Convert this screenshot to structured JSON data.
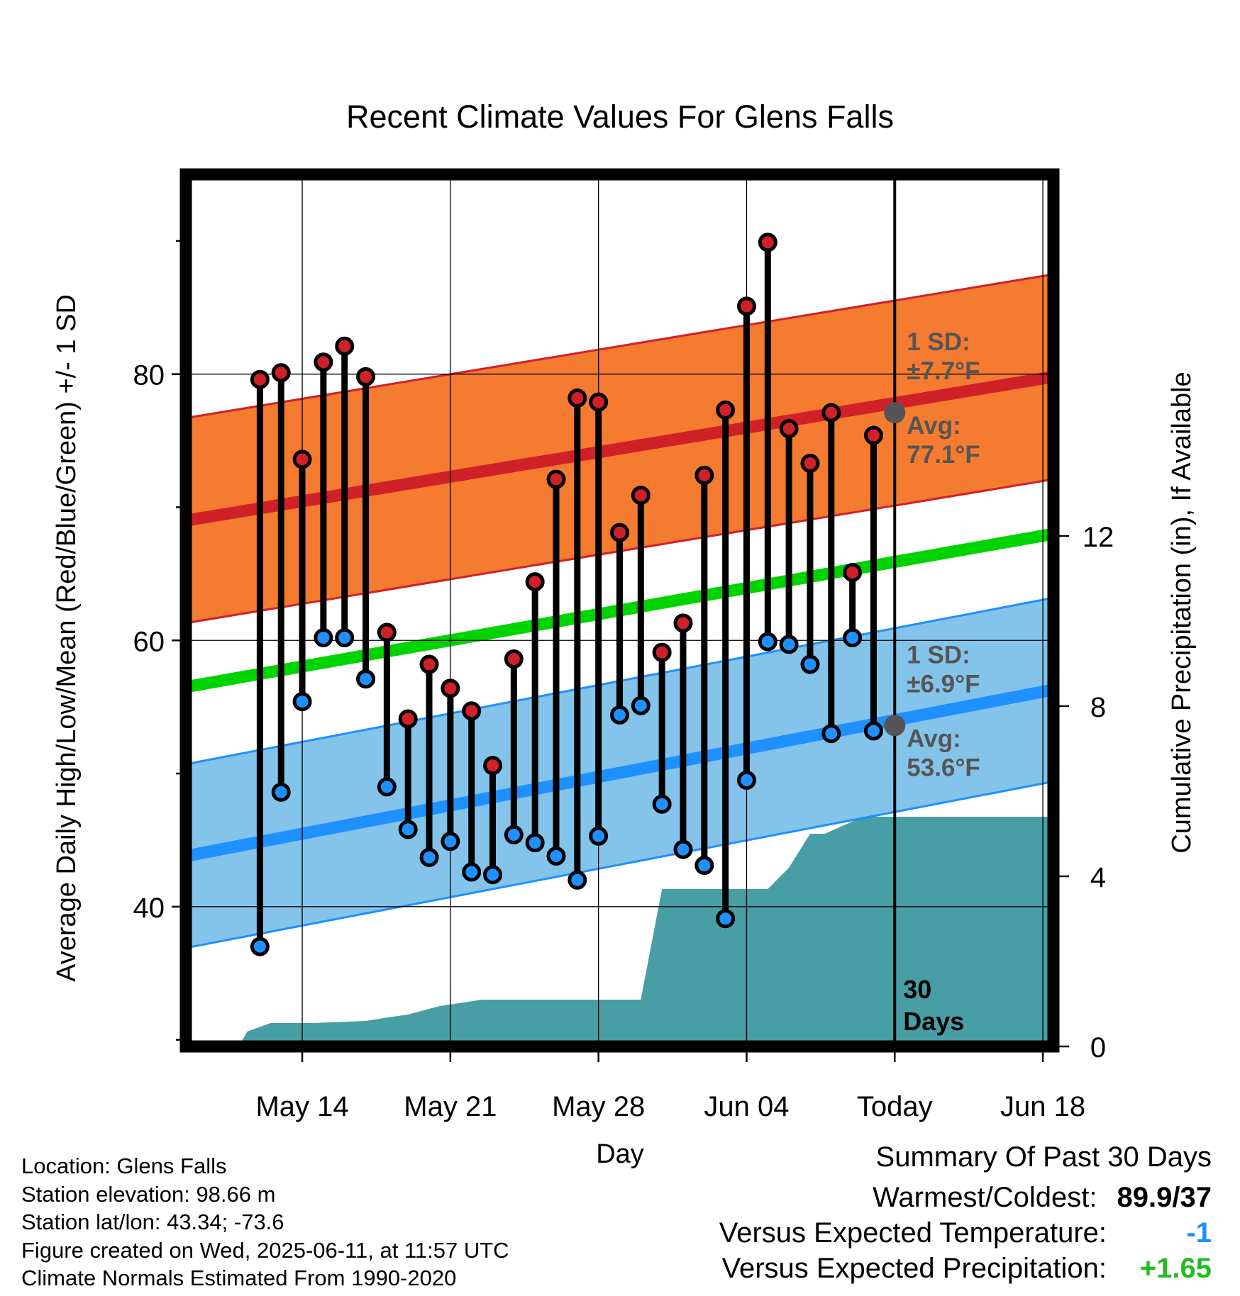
{
  "chart_data": {
    "type": "line",
    "title": "Recent Climate Values For Glens Falls",
    "xlabel": "Day",
    "ylabel": "Average Daily High/Low/Mean (Red/Blue/Green) +/- 1 SD",
    "y2label": "Cumulative Precipitation (in), If Available",
    "ylim": [
      29.5,
      95
    ],
    "y2lim": [
      0,
      20.5
    ],
    "yticks": [
      40,
      60,
      80
    ],
    "yminor": [
      30,
      50,
      70,
      90
    ],
    "y2ticks": [
      0,
      4,
      8,
      12
    ],
    "xrange_days": [
      -33.5,
      7.5
    ],
    "xticks": [
      {
        "day": -28,
        "label": "May 14"
      },
      {
        "day": -21,
        "label": "May 21"
      },
      {
        "day": -14,
        "label": "May 28"
      },
      {
        "day": -7,
        "label": "Jun 04"
      },
      {
        "day": 0,
        "label": "Today"
      },
      {
        "day": 7,
        "label": "Jun 18"
      }
    ],
    "grid": true,
    "days": [
      -30,
      -29,
      -28,
      -27,
      -26,
      -25,
      -24,
      -23,
      -22,
      -21,
      -20,
      -19,
      -18,
      -17,
      -16,
      -15,
      -14,
      -13,
      -12,
      -11,
      -10,
      -9,
      -8,
      -7,
      -6,
      -5,
      -4,
      -3,
      -2,
      -1
    ],
    "highs": [
      79.6,
      80.1,
      73.6,
      80.9,
      82.1,
      79.8,
      60.6,
      54.1,
      58.2,
      56.4,
      54.7,
      50.6,
      58.6,
      64.4,
      72.1,
      78.2,
      77.9,
      68.1,
      70.9,
      59.1,
      61.3,
      72.4,
      77.3,
      85.1,
      89.9,
      75.9,
      73.3,
      77.1,
      65.1,
      75.4
    ],
    "lows": [
      37.0,
      48.6,
      55.4,
      60.2,
      60.2,
      57.1,
      49.0,
      45.8,
      43.7,
      44.9,
      42.6,
      42.4,
      45.4,
      44.8,
      43.8,
      42.0,
      45.3,
      54.4,
      55.1,
      47.7,
      44.3,
      43.1,
      39.1,
      49.5,
      59.9,
      59.7,
      58.2,
      53.0,
      60.2,
      53.2
    ],
    "series": [
      {
        "name": "Normal High",
        "color": "#d02028",
        "x": [
          -33.5,
          7.5
        ],
        "values": [
          69.0,
          79.8
        ]
      },
      {
        "name": "Normal Low",
        "color": "#1e90ff",
        "x": [
          -33.5,
          7.5
        ],
        "values": [
          43.8,
          56.3
        ]
      },
      {
        "name": "Normal Mean",
        "color": "#00d400",
        "x": [
          -33.5,
          7.5
        ],
        "values": [
          56.5,
          68.0
        ]
      }
    ],
    "sd_bands": [
      {
        "name": "High SD band",
        "fill": "#f47b30",
        "edge": "#d02028",
        "sd": 7.7
      },
      {
        "name": "Low SD band",
        "fill": "#84c4ea",
        "edge": "#1e90ff",
        "sd": 6.9
      }
    ],
    "precip": {
      "color": "#479ea5",
      "x": [
        -31,
        -30.6,
        -29.5,
        -27.5,
        -26,
        -25,
        -24,
        -23,
        -21.5,
        -19.5,
        -16,
        -13,
        -12.5,
        -12,
        -11,
        -10,
        -8,
        -7,
        -6,
        -5,
        -4,
        -3.3,
        -2.4,
        -1.5,
        -1,
        0,
        7.5
      ],
      "values": [
        0,
        0.35,
        0.55,
        0.55,
        0.58,
        0.6,
        0.68,
        0.75,
        0.95,
        1.1,
        1.1,
        1.1,
        1.1,
        1.1,
        3.7,
        3.7,
        3.7,
        3.7,
        3.7,
        4.2,
        5.0,
        5.0,
        5.2,
        5.4,
        5.4,
        5.4,
        5.4
      ]
    },
    "annotations": {
      "high_sd_label": "1 SD:",
      "high_sd_value": "±7.7°F",
      "high_avg_label": "Avg:",
      "high_avg_value": "77.1°F",
      "high_avg": 77.1,
      "low_sd_label": "1 SD:",
      "low_sd_value": "±6.9°F",
      "low_avg_label": "Avg:",
      "low_avg_value": "53.6°F",
      "low_avg": 53.6,
      "window_line1": "30",
      "window_line2": "Days",
      "annotation_color": "#555555"
    }
  },
  "info": {
    "location": "Location: Glens Falls",
    "elevation": "Station elevation: 98.66 m",
    "latlon": "Station lat/lon: 43.34; -73.6",
    "created": "Figure created on Wed, 2025-06-11, at 11:57 UTC",
    "normals": "Climate Normals Estimated From 1990-2020"
  },
  "summary": {
    "heading": "Summary Of Past 30 Days",
    "warmest_label": "Warmest/Coldest:",
    "warmest_value": "89.9/37",
    "temp_label": "Versus Expected Temperature:",
    "temp_value": "-1",
    "temp_color": "#1e90ff",
    "precip_label": "Versus Expected Precipitation:",
    "precip_value": "+1.65",
    "precip_color": "#22bb22"
  }
}
